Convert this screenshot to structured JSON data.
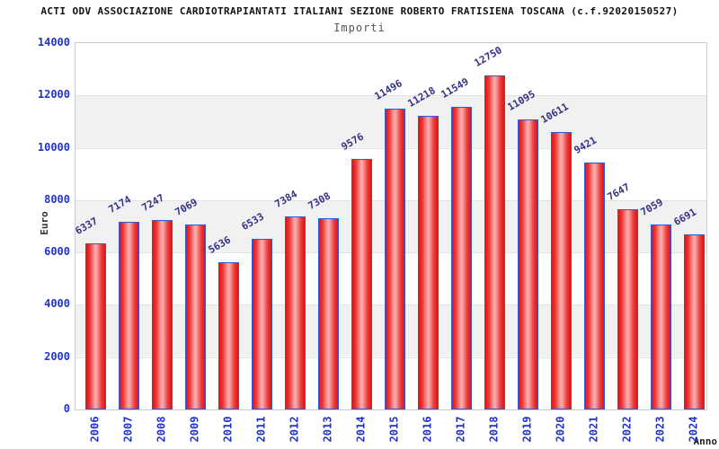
{
  "title": "ACTI ODV ASSOCIAZIONE CARDIOTRAPIANTATI ITALIANI SEZIONE ROBERTO FRATISIENA TOSCANA (c.f.92020150527)",
  "subtitle": "Importi",
  "chart_data": {
    "type": "bar",
    "title": "Importi",
    "xlabel": "Anno",
    "ylabel": "Euro",
    "categories": [
      "2006",
      "2007",
      "2008",
      "2009",
      "2010",
      "2011",
      "2012",
      "2013",
      "2014",
      "2015",
      "2016",
      "2017",
      "2018",
      "2019",
      "2020",
      "2021",
      "2022",
      "2023",
      "2024"
    ],
    "values": [
      6337,
      7174,
      7247,
      7069,
      5636,
      6533,
      7384,
      7308,
      9576,
      11496,
      11218,
      11549,
      12750,
      11095,
      10611,
      9421,
      7647,
      7059,
      6691
    ],
    "ylim": [
      0,
      14000
    ],
    "yticks": [
      0,
      2000,
      4000,
      6000,
      8000,
      10000,
      12000,
      14000
    ],
    "grid": true,
    "band_fill": "alternating horizontal bands every 2000",
    "legend_position": "none",
    "colors": {
      "bar_fill_edge": "#dd1616",
      "bar_fill_center": "#f9a8a8",
      "bar_border": "#2e5bd8",
      "tick_label": "#2233cc",
      "value_label": "#333388",
      "band_gray": "#f1f1f1",
      "gridline": "#e2e2e2",
      "plot_border": "#cccccc",
      "title_color": "#111111",
      "subtitle_color": "#555555",
      "axis_title_color": "#333333"
    }
  }
}
